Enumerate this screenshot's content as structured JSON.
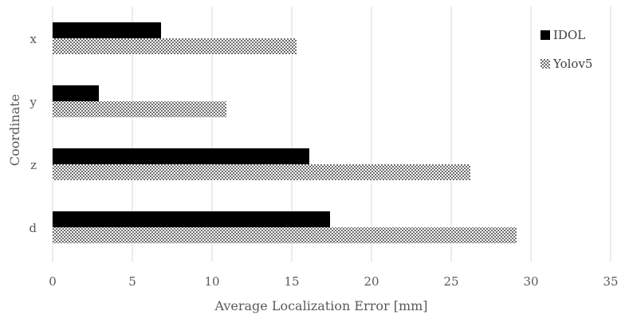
{
  "chart_data": {
    "type": "bar",
    "orientation": "horizontal",
    "categories": [
      "x",
      "y",
      "z",
      "d"
    ],
    "series": [
      {
        "name": "IDOL",
        "values": [
          6.8,
          2.9,
          16.1,
          17.4
        ],
        "color": "#000000",
        "pattern": "solid"
      },
      {
        "name": "Yolov5",
        "values": [
          15.3,
          10.9,
          26.2,
          29.1
        ],
        "color": "#7f7f7f",
        "pattern": "checkered"
      }
    ],
    "title": "",
    "xlabel": "Average Localization Error [mm]",
    "ylabel": "Coordinate",
    "xlim": [
      0,
      35
    ],
    "xticks": [
      "0",
      "5",
      "10",
      "15",
      "20",
      "25",
      "30",
      "35"
    ],
    "grid": "vertical",
    "legend_position": "right"
  }
}
